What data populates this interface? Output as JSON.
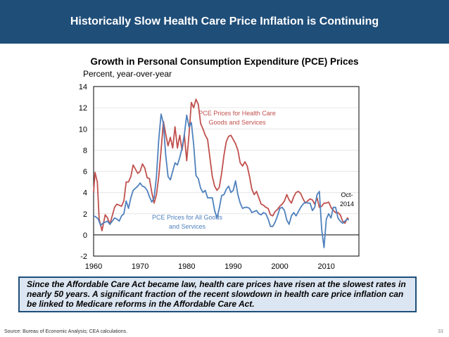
{
  "header": {
    "title": "Historically Slow Health Care Price Inflation is Continuing"
  },
  "callout": "Since the Affordable Care Act became law, health care prices have risen at the slowest rates in nearly 50 years. A significant fraction of the recent slowdown in health care price inflation can be linked to Medicare reforms in the Affordable Care Act.",
  "source": "Source: Bureau of Economic Analysis; CEA calculations.",
  "page_number": "33",
  "chart_data": {
    "type": "line",
    "title": "Growth in Personal Consumption Expenditure (PCE) Prices",
    "ylabel": "Percent, year-over-year",
    "xlabel": "",
    "xlim": [
      1960,
      2017
    ],
    "ylim": [
      -2,
      14
    ],
    "xticks": [
      "1960",
      "1970",
      "1980",
      "1990",
      "2000",
      "2010"
    ],
    "yticks": [
      "-2",
      "0",
      "2",
      "4",
      "6",
      "8",
      "10",
      "12",
      "14"
    ],
    "grid": true,
    "annotations": [
      "Oct-",
      "2014"
    ],
    "series": [
      {
        "name": "PCE Prices for Health Care Goods and Services",
        "label_lines": [
          "PCE Prices for Health Care",
          "Goods and Services"
        ],
        "color": "#C0504D",
        "x": [
          1960,
          1960.3,
          1960.8,
          1961.2,
          1961.8,
          1962.5,
          1963,
          1963.5,
          1964,
          1964.5,
          1965,
          1966,
          1966.5,
          1967,
          1967.5,
          1968,
          1968.5,
          1969,
          1969.5,
          1970,
          1970.5,
          1971,
          1971.5,
          1972,
          1972.5,
          1973,
          1973.5,
          1974,
          1974.5,
          1975,
          1975.5,
          1976,
          1976.5,
          1977,
          1977.5,
          1978,
          1978.5,
          1979,
          1979.5,
          1980,
          1980.5,
          1981,
          1981.5,
          1982,
          1982.5,
          1983,
          1983.5,
          1984,
          1984.5,
          1985,
          1985.5,
          1986,
          1986.5,
          1987,
          1987.5,
          1988,
          1988.5,
          1989,
          1989.5,
          1990,
          1990.5,
          1991,
          1991.5,
          1992,
          1992.5,
          1993,
          1993.5,
          1994,
          1994.5,
          1995,
          1995.5,
          1996,
          1996.5,
          1997,
          1997.5,
          1998,
          1998.5,
          1999,
          1999.5,
          2000,
          2000.5,
          2001,
          2001.5,
          2002,
          2002.5,
          2003,
          2003.5,
          2004,
          2004.5,
          2005,
          2005.5,
          2006,
          2006.5,
          2007,
          2007.5,
          2008,
          2008.5,
          2009,
          2009.5,
          2010,
          2010.5,
          2011,
          2011.5,
          2012,
          2012.5,
          2013,
          2013.5,
          2014,
          2014.5,
          2014.8
        ],
        "y": [
          4.0,
          5.9,
          5.0,
          1.5,
          0.4,
          1.9,
          1.6,
          1.0,
          1.8,
          2.6,
          2.9,
          2.7,
          3.2,
          5.0,
          5.0,
          5.5,
          6.6,
          6.2,
          5.8,
          6.0,
          6.7,
          6.3,
          5.4,
          5.3,
          4.0,
          3.0,
          3.8,
          5.5,
          8.0,
          10.7,
          9.5,
          8.4,
          9.2,
          8.2,
          10.2,
          8.2,
          9.4,
          8.0,
          9.4,
          7.0,
          9.5,
          12.5,
          12.0,
          12.8,
          12.3,
          10.5,
          10.0,
          9.4,
          9.0,
          7.2,
          5.5,
          4.6,
          4.2,
          4.5,
          5.8,
          7.5,
          8.8,
          9.3,
          9.4,
          9.0,
          8.6,
          8.0,
          6.8,
          6.5,
          6.9,
          6.5,
          5.5,
          4.3,
          3.8,
          4.1,
          3.5,
          2.9,
          2.8,
          2.6,
          2.5,
          1.9,
          1.8,
          2.2,
          2.4,
          2.7,
          2.9,
          3.2,
          3.8,
          3.3,
          3.0,
          3.6,
          4.0,
          4.1,
          3.9,
          3.4,
          3.0,
          3.2,
          3.4,
          3.3,
          2.9,
          3.5,
          2.6,
          2.7,
          3.0,
          3.0,
          3.1,
          2.6,
          2.3,
          2.1,
          2.1,
          1.9,
          1.3,
          1.1,
          1.6,
          1.5
        ]
      },
      {
        "name": "PCE Prices for All Goods and Services",
        "label_lines": [
          "PCE Prices for All Goods",
          "and Services"
        ],
        "color": "#4F81BD",
        "x": [
          1960,
          1960.5,
          1961,
          1961.5,
          1962,
          1962.5,
          1963,
          1963.5,
          1964,
          1964.5,
          1965,
          1965.5,
          1966,
          1966.5,
          1967,
          1967.5,
          1968,
          1968.5,
          1969,
          1969.5,
          1970,
          1970.5,
          1971,
          1971.5,
          1972,
          1972.5,
          1973,
          1973.5,
          1974,
          1974.5,
          1975,
          1975.5,
          1976,
          1976.5,
          1977,
          1977.5,
          1978,
          1978.5,
          1979,
          1979.5,
          1980,
          1980.5,
          1981,
          1981.5,
          1982,
          1982.5,
          1983,
          1983.5,
          1984,
          1984.5,
          1985,
          1985.5,
          1986,
          1986.5,
          1987,
          1987.5,
          1988,
          1988.5,
          1989,
          1989.5,
          1990,
          1990.5,
          1991,
          1991.5,
          1992,
          1992.5,
          1993,
          1993.5,
          1994,
          1994.5,
          1995,
          1995.5,
          1996,
          1996.5,
          1997,
          1997.5,
          1998,
          1998.5,
          1999,
          1999.5,
          2000,
          2000.5,
          2001,
          2001.5,
          2002,
          2002.5,
          2003,
          2003.5,
          2004,
          2004.5,
          2005,
          2005.5,
          2006,
          2006.5,
          2007,
          2007.5,
          2008,
          2008.5,
          2009,
          2009.5,
          2010,
          2010.5,
          2011,
          2011.5,
          2012,
          2012.5,
          2013,
          2013.5,
          2014,
          2014.5,
          2014.8
        ],
        "y": [
          1.8,
          1.7,
          1.5,
          0.9,
          1.1,
          1.2,
          1.3,
          1.0,
          1.3,
          1.6,
          1.5,
          1.3,
          1.8,
          2.0,
          3.2,
          2.5,
          3.5,
          4.2,
          4.4,
          4.6,
          4.9,
          4.6,
          4.5,
          4.2,
          3.6,
          3.1,
          3.5,
          5.5,
          9.0,
          11.4,
          10.5,
          7.5,
          5.5,
          5.2,
          6.0,
          6.8,
          6.6,
          7.3,
          8.2,
          9.5,
          11.3,
          10.2,
          10.6,
          8.5,
          5.6,
          5.3,
          4.4,
          4.0,
          4.2,
          3.5,
          3.5,
          3.5,
          2.3,
          1.6,
          2.5,
          3.7,
          3.8,
          4.3,
          4.6,
          4.0,
          4.2,
          5.1,
          3.8,
          3.0,
          2.5,
          2.6,
          2.6,
          2.5,
          2.1,
          2.2,
          2.3,
          2.0,
          1.9,
          2.1,
          2.0,
          1.5,
          0.8,
          0.8,
          1.2,
          1.8,
          2.5,
          2.6,
          2.3,
          1.4,
          1.0,
          1.8,
          2.1,
          1.8,
          2.2,
          2.6,
          2.9,
          3.1,
          3.0,
          3.0,
          2.3,
          2.6,
          3.8,
          4.1,
          0.5,
          -1.2,
          1.5,
          2.0,
          1.6,
          2.6,
          2.6,
          1.6,
          1.3,
          1.1,
          1.3,
          1.5,
          1.4
        ]
      }
    ]
  }
}
